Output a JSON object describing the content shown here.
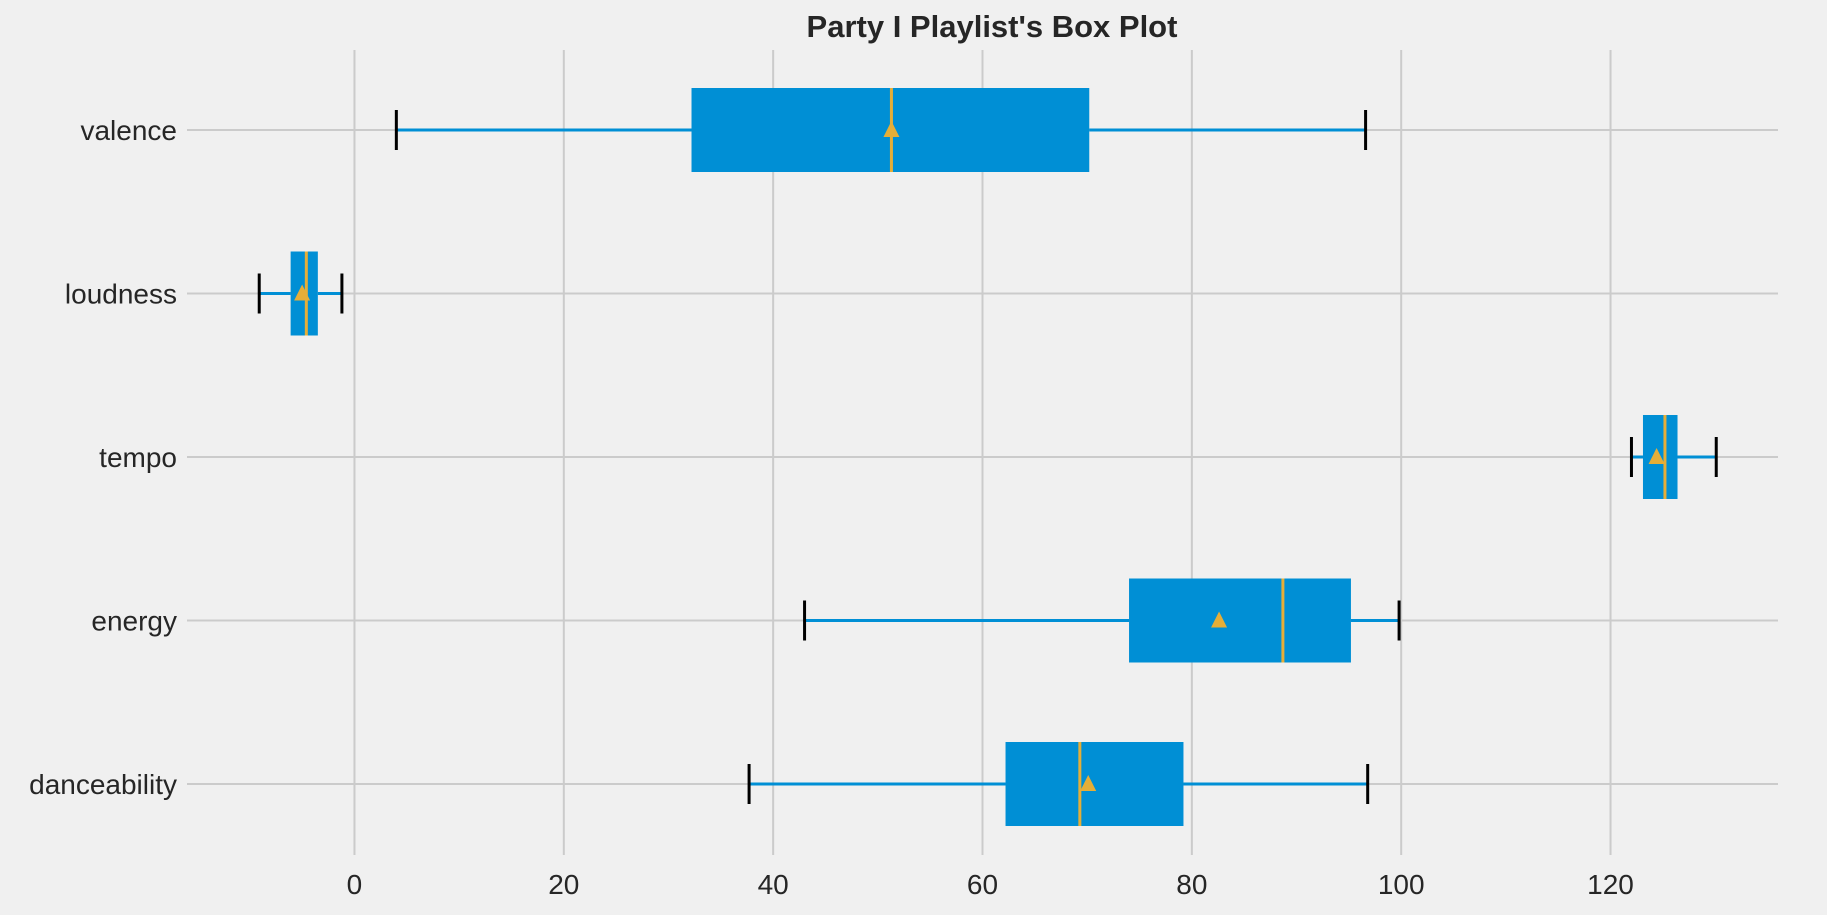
{
  "chart_data": {
    "type": "boxplot",
    "orientation": "horizontal",
    "title": "Party I Playlist's Box Plot",
    "xlabel": "",
    "ylabel": "",
    "xlim": [
      -16,
      136
    ],
    "xticks": [
      0,
      20,
      40,
      60,
      80,
      100,
      120
    ],
    "grid": true,
    "categories": [
      "valence",
      "loudness",
      "tempo",
      "energy",
      "danceability"
    ],
    "boxes": [
      {
        "name": "valence",
        "whisker_low": 4.0,
        "q1": 32.2,
        "median": 51.3,
        "q3": 70.2,
        "whisker_high": 96.6,
        "mean": 51.3
      },
      {
        "name": "loudness",
        "whisker_low": -9.1,
        "q1": -6.1,
        "median": -4.6,
        "q3": -3.5,
        "whisker_high": -1.2,
        "mean": -5.0
      },
      {
        "name": "tempo",
        "whisker_low": 122.0,
        "q1": 123.1,
        "median": 125.2,
        "q3": 126.4,
        "whisker_high": 130.1,
        "mean": 124.4
      },
      {
        "name": "energy",
        "whisker_low": 43.0,
        "q1": 74.0,
        "median": 88.7,
        "q3": 95.2,
        "whisker_high": 99.8,
        "mean": 82.6
      },
      {
        "name": "danceability",
        "whisker_low": 37.7,
        "q1": 62.2,
        "median": 69.3,
        "q3": 79.2,
        "whisker_high": 96.8,
        "mean": 70.1
      }
    ],
    "colors": {
      "background": "#f0f0f0",
      "box": "#008fd5",
      "median": "#e5ae38",
      "mean": "#e5ae38",
      "whisker": "#008fd5",
      "cap": "#000000",
      "grid": "#cbcbcb",
      "text": "#262626"
    }
  }
}
